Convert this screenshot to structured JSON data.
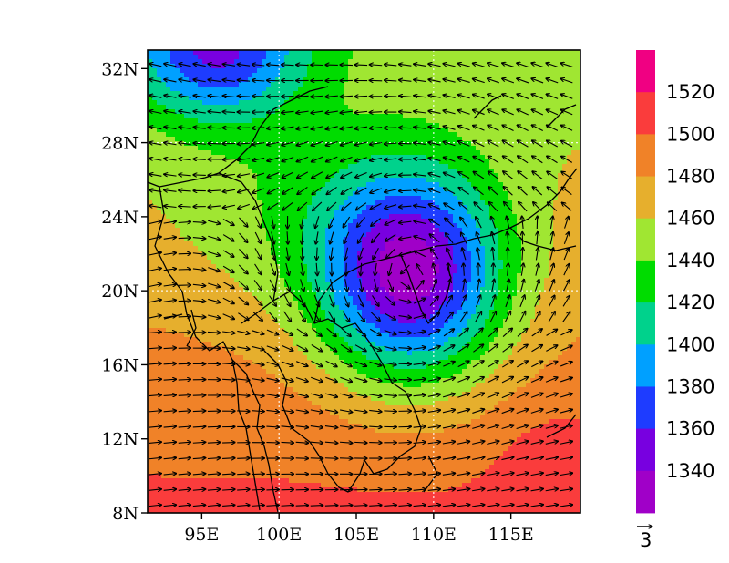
{
  "map": {
    "lat_ticks": [
      "32N",
      "28N",
      "24N",
      "20N",
      "16N",
      "12N",
      "8N"
    ],
    "lon_ticks": [
      "95E",
      "100E",
      "105E",
      "110E",
      "115E"
    ],
    "extent": {
      "lon": [
        91.5,
        119.5
      ],
      "lat": [
        8,
        33
      ]
    },
    "grid_lines": {
      "lon": [
        100,
        110
      ],
      "lat": [
        20,
        28
      ]
    },
    "low_center": {
      "lon": 108.5,
      "lat": 20.8,
      "circulation": "cyclonic"
    }
  },
  "colorbar": {
    "labels": [
      "1520",
      "1500",
      "1480",
      "1460",
      "1440",
      "1420",
      "1400",
      "1380",
      "1360",
      "1340"
    ],
    "levels": [
      1320,
      1340,
      1360,
      1380,
      1400,
      1420,
      1440,
      1460,
      1480,
      1500,
      1520,
      1540
    ],
    "colors": [
      "#a000c8",
      "#7800e0",
      "#1e3cff",
      "#00a0ff",
      "#00d28c",
      "#00dc00",
      "#a0e632",
      "#e6af2d",
      "#f08228",
      "#fa3c3c",
      "#f00082"
    ]
  },
  "vector_reference": {
    "label": "3"
  },
  "chart_data": {
    "type": "heatmap",
    "field": "geopotential height with wind vectors",
    "contour_levels": [
      1320,
      1340,
      1360,
      1380,
      1400,
      1420,
      1440,
      1460,
      1480,
      1500,
      1520,
      1540
    ],
    "x_ticks": [
      "95E",
      "100E",
      "105E",
      "110E",
      "115E"
    ],
    "y_ticks": [
      "8N",
      "12N",
      "16N",
      "20N",
      "24N",
      "28N",
      "32N"
    ],
    "xlim": [
      91.5,
      119.5
    ],
    "ylim": [
      8,
      33
    ],
    "minimum_center": [
      108.5,
      20.8
    ],
    "reference_vector": "3",
    "grid": "dotted at 100E, 110E, 20N, 28N",
    "legend": "colorbar right"
  }
}
